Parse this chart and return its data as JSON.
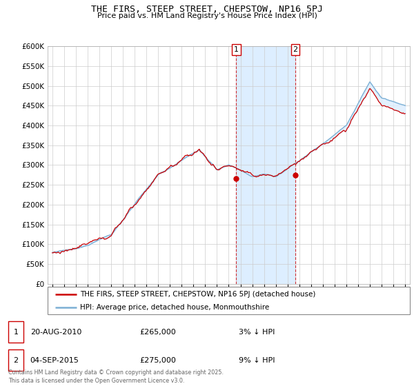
{
  "title": "THE FIRS, STEEP STREET, CHEPSTOW, NP16 5PJ",
  "subtitle": "Price paid vs. HM Land Registry's House Price Index (HPI)",
  "y_min": 0,
  "y_max": 600000,
  "y_ticks": [
    0,
    50000,
    100000,
    150000,
    200000,
    250000,
    300000,
    350000,
    400000,
    450000,
    500000,
    550000,
    600000
  ],
  "marker1_year": 2010.63,
  "marker2_year": 2015.67,
  "marker1_label": "1",
  "marker2_label": "2",
  "legend_line1": "THE FIRS, STEEP STREET, CHEPSTOW, NP16 5PJ (detached house)",
  "legend_line2": "HPI: Average price, detached house, Monmouthshire",
  "sale1_date": "20-AUG-2010",
  "sale1_price": "£265,000",
  "sale1_hpi": "3% ↓ HPI",
  "sale2_date": "04-SEP-2015",
  "sale2_price": "£275,000",
  "sale2_hpi": "9% ↓ HPI",
  "footer": "Contains HM Land Registry data © Crown copyright and database right 2025.\nThis data is licensed under the Open Government Licence v3.0.",
  "hpi_color": "#7bafd4",
  "property_color": "#cc0000",
  "shade_color": "#ddeeff",
  "grid_color": "#cccccc",
  "marker_color": "#cc0000",
  "sale1_value": 265000,
  "sale2_value": 275000
}
